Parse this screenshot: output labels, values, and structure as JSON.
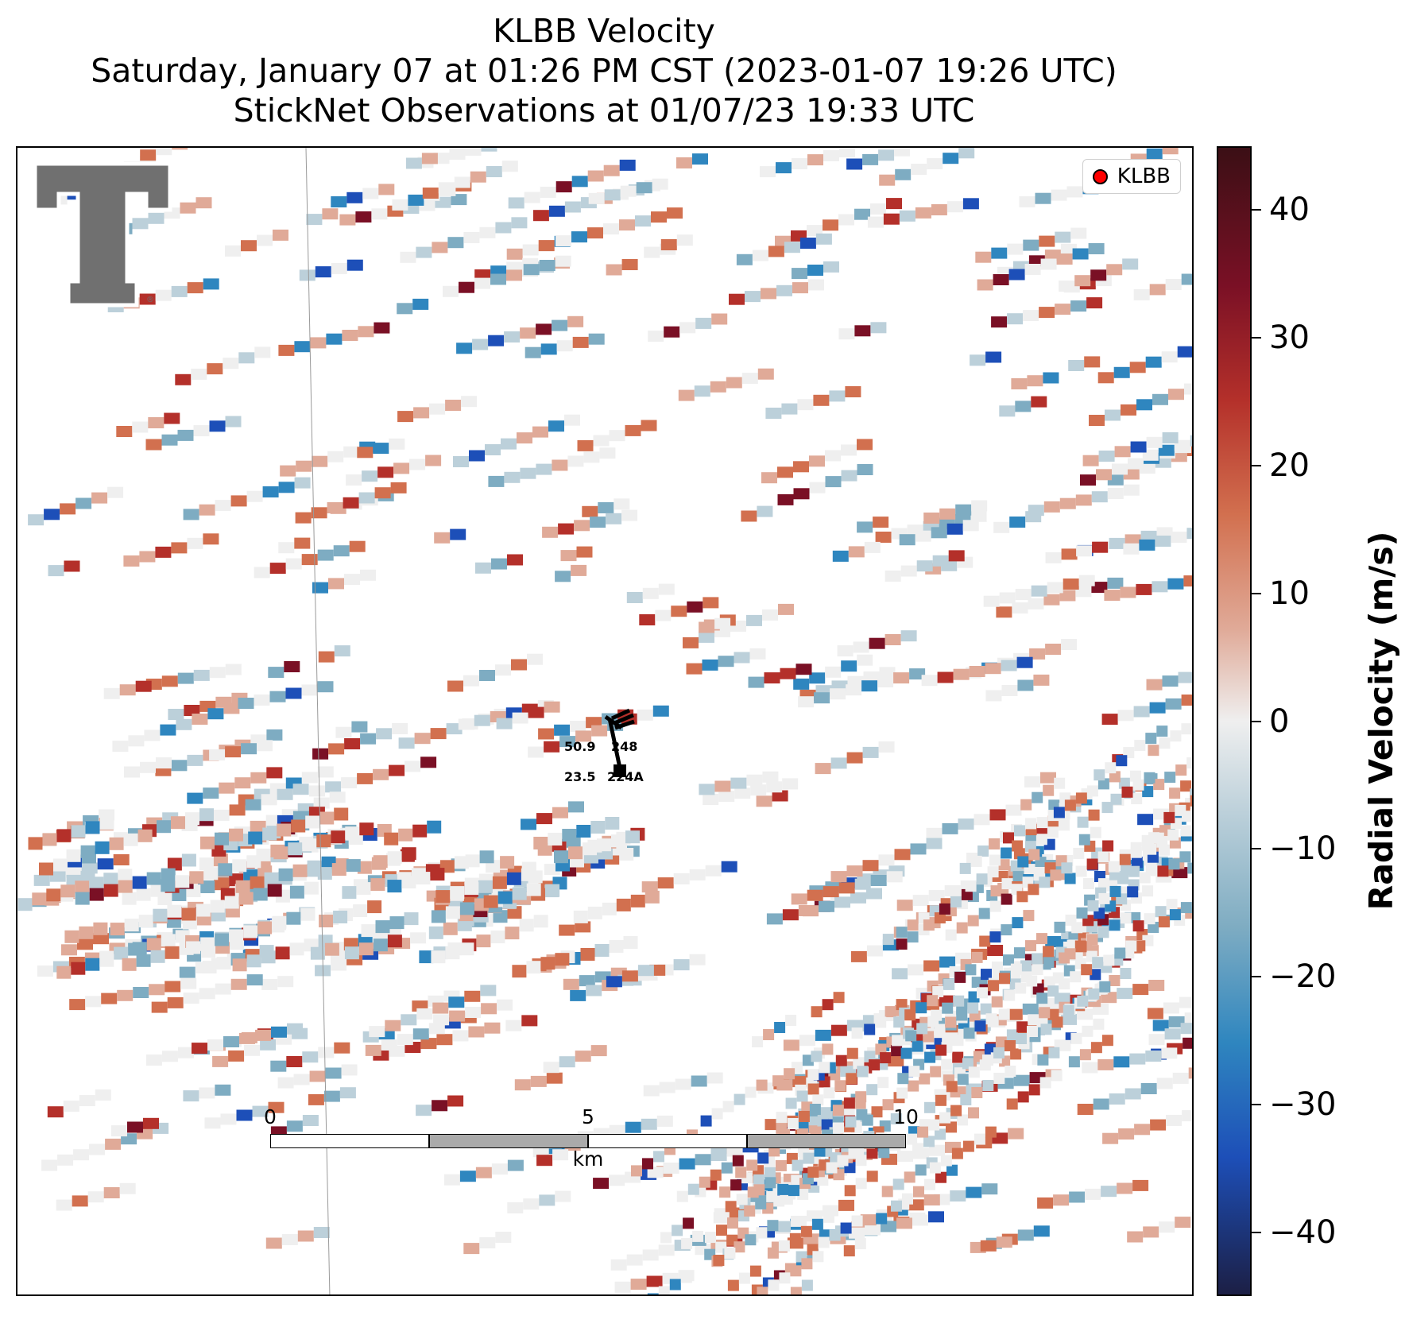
{
  "title": {
    "line1": "KLBB Velocity",
    "line2": "Saturday, January 07 at 01:26 PM CST (2023-01-07 19:26 UTC)",
    "line3": "StickNet Observations at 01/07/23 19:33 UTC"
  },
  "legend": {
    "label": "KLBB",
    "marker_color": "#ff0000"
  },
  "logo": {
    "name": "Texas Tech Double T"
  },
  "stations": [
    {
      "id": "248",
      "value": "50.9",
      "value_color": "#cc0000"
    },
    {
      "id": "224A",
      "value": "23.5",
      "value_color": "#006600"
    }
  ],
  "scalebar": {
    "ticks": [
      "0",
      "5",
      "10"
    ],
    "unit": "km"
  },
  "colorbar": {
    "label": "Radial Velocity (m/s)",
    "ticks": [
      "40",
      "30",
      "20",
      "10",
      "0",
      "−10",
      "−20",
      "−30",
      "−40"
    ],
    "range": [
      -45,
      45
    ],
    "colors": [
      "#1c1f45",
      "#1d4fb8",
      "#2f86bf",
      "#7eacc2",
      "#bcd0da",
      "#efefef",
      "#e0aa98",
      "#d2704f",
      "#b4302a",
      "#7a1025",
      "#3b0f15"
    ]
  }
}
